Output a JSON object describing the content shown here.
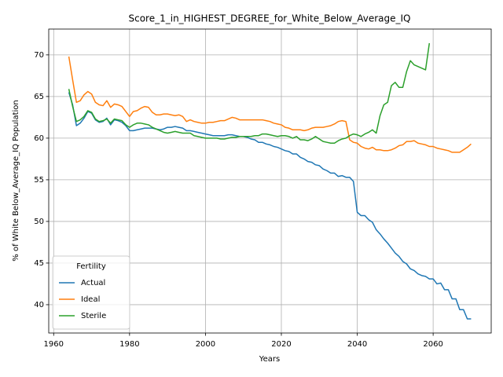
{
  "chart_data": {
    "type": "line",
    "title": "Score_1_in_HIGHEST_DEGREE_for_White_Below_Average_IQ",
    "xlabel": "Years",
    "ylabel": "% of White Below_Average_IQ Population",
    "legend_title": "Fertility",
    "legend_position": "lower left",
    "grid": true,
    "xlim": [
      1958.7,
      2075.3
    ],
    "ylim": [
      36.6,
      73.1
    ],
    "xticks": [
      1960,
      1980,
      2000,
      2020,
      2040,
      2060
    ],
    "yticks": [
      40,
      45,
      50,
      55,
      60,
      65,
      70
    ],
    "x": [
      1964,
      1965,
      1966,
      1967,
      1968,
      1969,
      1970,
      1971,
      1972,
      1973,
      1974,
      1975,
      1976,
      1977,
      1978,
      1979,
      1980,
      1981,
      1982,
      1983,
      1984,
      1985,
      1986,
      1987,
      1988,
      1989,
      1990,
      1991,
      1992,
      1993,
      1994,
      1995,
      1996,
      1997,
      1998,
      1999,
      2000,
      2001,
      2002,
      2003,
      2004,
      2005,
      2006,
      2007,
      2008,
      2009,
      2010,
      2011,
      2012,
      2013,
      2014,
      2015,
      2016,
      2017,
      2018,
      2019,
      2020,
      2021,
      2022,
      2023,
      2024,
      2025,
      2026,
      2027,
      2028,
      2029,
      2030,
      2031,
      2032,
      2033,
      2034,
      2035,
      2036,
      2037,
      2038,
      2039,
      2040,
      2041,
      2042,
      2043,
      2044,
      2045,
      2046,
      2047,
      2048,
      2049,
      2050,
      2051,
      2052,
      2053,
      2054,
      2055,
      2056,
      2057,
      2058,
      2059,
      2060,
      2061,
      2062,
      2063,
      2064,
      2065,
      2066,
      2067,
      2068,
      2069,
      2070
    ],
    "series": [
      {
        "name": "Actual",
        "color": "#1f77b4",
        "values": [
          65.5,
          64,
          61.5,
          61.8,
          62.4,
          63.2,
          63.0,
          62.2,
          61.9,
          62.0,
          62.4,
          61.6,
          62.2,
          62.1,
          61.9,
          61.5,
          60.9,
          60.9,
          61.0,
          61.1,
          61.2,
          61.2,
          61.2,
          61.1,
          61.0,
          61.1,
          61.3,
          61.3,
          61.4,
          61.3,
          61.2,
          60.9,
          60.9,
          60.8,
          60.7,
          60.6,
          60.5,
          60.4,
          60.3,
          60.3,
          60.3,
          60.3,
          60.4,
          60.4,
          60.3,
          60.2,
          60.2,
          60.1,
          59.9,
          59.8,
          59.5,
          59.5,
          59.3,
          59.2,
          59.0,
          58.9,
          58.7,
          58.5,
          58.4,
          58.1,
          58.1,
          57.7,
          57.5,
          57.2,
          57.1,
          56.8,
          56.7,
          56.3,
          56.1,
          55.8,
          55.8,
          55.4,
          55.5,
          55.3,
          55.3,
          54.8,
          51.1,
          50.7,
          50.7,
          50.2,
          49.9,
          49.0,
          48.5,
          47.9,
          47.4,
          46.8,
          46.2,
          45.8,
          45.2,
          44.9,
          44.3,
          44.1,
          43.7,
          43.5,
          43.4,
          43.1,
          43.1,
          42.5,
          42.6,
          41.8,
          41.8,
          40.7,
          40.7,
          39.4,
          39.4,
          38.3,
          38.3
        ]
      },
      {
        "name": "Ideal",
        "color": "#ff7f0e",
        "values": [
          69.8,
          67,
          64.3,
          64.5,
          65.2,
          65.6,
          65.3,
          64.3,
          64.0,
          63.9,
          64.5,
          63.7,
          64.1,
          64.0,
          63.8,
          63.2,
          62.6,
          63.2,
          63.3,
          63.6,
          63.8,
          63.7,
          63.1,
          62.8,
          62.8,
          62.9,
          62.9,
          62.8,
          62.7,
          62.8,
          62.6,
          62.0,
          62.2,
          62.0,
          61.9,
          61.8,
          61.8,
          61.9,
          61.9,
          62.0,
          62.1,
          62.1,
          62.3,
          62.5,
          62.4,
          62.2,
          62.2,
          62.2,
          62.2,
          62.2,
          62.2,
          62.2,
          62.1,
          62.0,
          61.8,
          61.7,
          61.6,
          61.3,
          61.2,
          61.0,
          61.0,
          61.0,
          60.9,
          61.0,
          61.2,
          61.3,
          61.3,
          61.3,
          61.4,
          61.5,
          61.7,
          62.0,
          62.1,
          62.0,
          59.8,
          59.5,
          59.4,
          59.0,
          58.8,
          58.7,
          58.9,
          58.6,
          58.6,
          58.5,
          58.5,
          58.6,
          58.8,
          59.1,
          59.2,
          59.6,
          59.6,
          59.7,
          59.4,
          59.3,
          59.2,
          59.0,
          59.0,
          58.8,
          58.7,
          58.6,
          58.5,
          58.3,
          58.3,
          58.3,
          58.6,
          58.9,
          59.3
        ]
      },
      {
        "name": "Sterile",
        "color": "#2ca02c",
        "values": [
          65.9,
          63.8,
          62,
          62.2,
          62.6,
          63.3,
          63.1,
          62.3,
          62.0,
          62.1,
          62.3,
          61.8,
          62.3,
          62.2,
          62.1,
          61.6,
          61.3,
          61.6,
          61.8,
          61.8,
          61.7,
          61.6,
          61.3,
          61.1,
          60.9,
          60.7,
          60.6,
          60.7,
          60.8,
          60.7,
          60.6,
          60.6,
          60.6,
          60.3,
          60.2,
          60.1,
          60.0,
          60.0,
          60.0,
          60.0,
          59.9,
          59.9,
          60.0,
          60.1,
          60.1,
          60.2,
          60.2,
          60.2,
          60.2,
          60.3,
          60.3,
          60.5,
          60.5,
          60.4,
          60.3,
          60.2,
          60.3,
          60.3,
          60.2,
          60.0,
          60.2,
          59.8,
          59.8,
          59.7,
          59.9,
          60.2,
          59.9,
          59.6,
          59.5,
          59.4,
          59.4,
          59.7,
          59.9,
          60.0,
          60.3,
          60.5,
          60.4,
          60.2,
          60.5,
          60.7,
          61.0,
          60.6,
          62.7,
          64.0,
          64.3,
          66.3,
          66.7,
          66.1,
          66.1,
          68.0,
          69.3,
          68.8,
          68.6,
          68.4,
          68.2,
          71.4,
          null,
          null,
          null,
          null,
          null,
          null,
          null,
          null,
          null,
          null,
          null
        ]
      }
    ]
  }
}
